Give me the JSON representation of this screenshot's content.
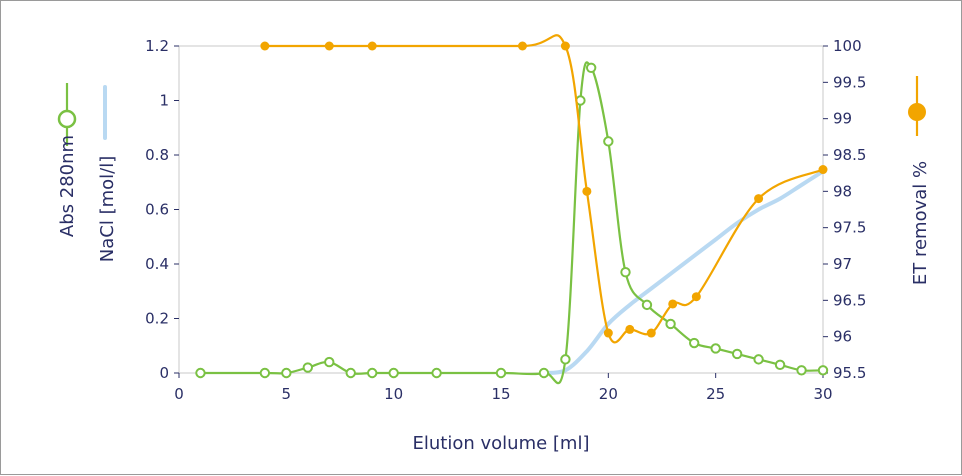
{
  "chart_data": {
    "type": "line",
    "xlabel": "Elution volume [ml]",
    "ylabel_abs": "Abs 280nm",
    "ylabel_nacl": "NaCl [mol/l]",
    "ylabel_right": "ET removal %",
    "xlim": [
      0,
      30
    ],
    "ylim_left": [
      0,
      1.2
    ],
    "ylim_right": [
      95.5,
      100
    ],
    "x_ticks": [
      "0",
      "5",
      "10",
      "15",
      "20",
      "25",
      "30"
    ],
    "y_left_ticks": [
      "0",
      "0.2",
      "0.4",
      "0.6",
      "0.8",
      "1",
      "1.2"
    ],
    "y_right_ticks": [
      "95.5",
      "96",
      "96.5",
      "97",
      "97.5",
      "98",
      "98.5",
      "99",
      "99.5",
      "100"
    ],
    "grid": false,
    "colors": {
      "abs": "#7ac143",
      "nacl": "#b9d9f2",
      "et": "#f2a500",
      "axis": "#2a2f66",
      "frame": "#c8c8c8"
    },
    "series": [
      {
        "name": "Abs 280nm",
        "axis": "left",
        "marker": "open-circle",
        "x": [
          1,
          4,
          5,
          6,
          7,
          8,
          9,
          10,
          12,
          15,
          17,
          18,
          18.7,
          19.2,
          20,
          20.8,
          21.8,
          22.9,
          24,
          25,
          26,
          27,
          28,
          29,
          30
        ],
        "y": [
          0,
          0,
          0,
          0.02,
          0.04,
          0,
          0,
          0,
          0,
          0,
          0,
          0.05,
          1.0,
          1.12,
          0.85,
          0.37,
          0.25,
          0.18,
          0.11,
          0.09,
          0.07,
          0.05,
          0.03,
          0.01,
          0.01
        ]
      },
      {
        "name": "NaCl [mol/l]",
        "axis": "left",
        "marker": "none",
        "x": [
          17,
          18,
          19,
          20,
          21,
          22,
          23,
          24,
          25,
          26,
          27,
          28,
          29,
          30
        ],
        "y": [
          0,
          0.01,
          0.08,
          0.18,
          0.25,
          0.31,
          0.37,
          0.43,
          0.49,
          0.55,
          0.6,
          0.64,
          0.69,
          0.74
        ]
      },
      {
        "name": "ET removal %",
        "axis": "right",
        "marker": "filled-circle",
        "x": [
          4,
          7,
          9,
          16,
          18,
          19,
          20,
          21,
          22,
          23,
          24.1,
          27,
          30
        ],
        "y": [
          100,
          100,
          100,
          100,
          100,
          98,
          96.05,
          96.1,
          96.05,
          96.45,
          96.55,
          97.9,
          98.3
        ]
      }
    ]
  }
}
